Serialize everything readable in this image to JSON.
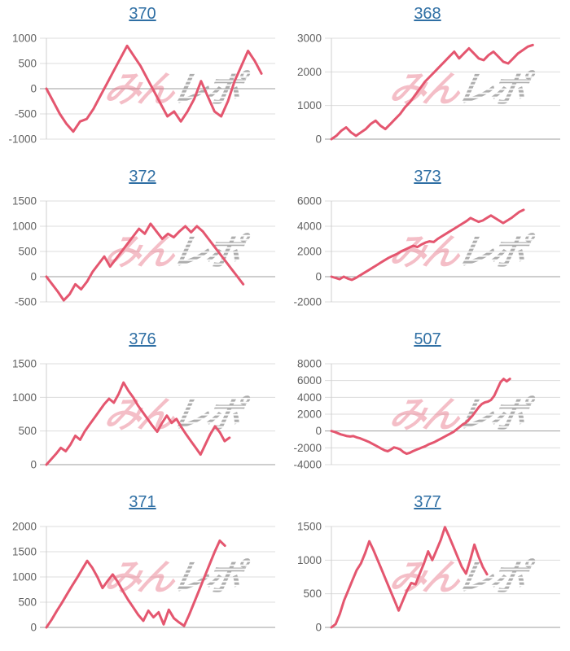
{
  "style": {
    "line_color": "#e4566f",
    "grid_color": "#dcdcdc",
    "zero_line_color": "#9e9e9e",
    "axis_line_color": "#cfcfcf",
    "tick_label_color": "#616161",
    "title_link_color": "#2f6fa4"
  },
  "watermark": {
    "pink_text": "みん",
    "gray_text": "レポ",
    "pink_color": "#e4566f",
    "gray_color": "#999999"
  },
  "chart_data": [
    {
      "type": "line",
      "title": "370",
      "ylim": [
        -1000,
        1000
      ],
      "yticks": [
        1000,
        500,
        0,
        -500,
        -1000
      ],
      "x_span": 0.94,
      "grid": true,
      "legend": "none",
      "values": [
        0,
        -250,
        -500,
        -700,
        -850,
        -650,
        -600,
        -400,
        -150,
        100,
        350,
        600,
        850,
        650,
        450,
        200,
        -50,
        -300,
        -550,
        -450,
        -650,
        -450,
        -200,
        150,
        -150,
        -450,
        -550,
        -250,
        150,
        450,
        750,
        550,
        300
      ]
    },
    {
      "type": "line",
      "title": "368",
      "ylim": [
        0,
        3000
      ],
      "yticks": [
        3000,
        2000,
        1000,
        0
      ],
      "x_span": 0.88,
      "grid": true,
      "legend": "none",
      "values": [
        0,
        100,
        250,
        350,
        200,
        100,
        200,
        300,
        450,
        550,
        400,
        300,
        450,
        600,
        750,
        950,
        1100,
        1300,
        1500,
        1700,
        1850,
        2000,
        2150,
        2300,
        2450,
        2600,
        2400,
        2550,
        2700,
        2550,
        2400,
        2350,
        2500,
        2600,
        2450,
        2300,
        2250,
        2400,
        2550,
        2650,
        2750,
        2800
      ]
    },
    {
      "type": "line",
      "title": "372",
      "ylim": [
        -500,
        1500
      ],
      "yticks": [
        1500,
        1000,
        500,
        0,
        -500
      ],
      "x_span": 0.86,
      "grid": true,
      "legend": "none",
      "values": [
        0,
        -150,
        -300,
        -470,
        -350,
        -150,
        -250,
        -100,
        100,
        250,
        400,
        200,
        350,
        500,
        650,
        800,
        950,
        850,
        1050,
        900,
        750,
        850,
        780,
        900,
        1000,
        880,
        1000,
        900,
        750,
        600,
        450,
        300,
        150,
        0,
        -150
      ]
    },
    {
      "type": "line",
      "title": "373",
      "ylim": [
        -2000,
        6000
      ],
      "yticks": [
        6000,
        4000,
        2000,
        0,
        -2000
      ],
      "x_span": 0.84,
      "grid": true,
      "legend": "none",
      "values": [
        0,
        -100,
        -200,
        0,
        -150,
        -250,
        -100,
        100,
        300,
        500,
        700,
        900,
        1100,
        1300,
        1500,
        1650,
        1800,
        2000,
        2150,
        2300,
        2450,
        2350,
        2550,
        2700,
        2800,
        2750,
        3000,
        3200,
        3400,
        3600,
        3800,
        4000,
        4200,
        4400,
        4650,
        4500,
        4350,
        4450,
        4650,
        4850,
        4650,
        4450,
        4250,
        4450,
        4650,
        4900,
        5150,
        5300
      ]
    },
    {
      "type": "line",
      "title": "376",
      "ylim": [
        0,
        1500
      ],
      "yticks": [
        1500,
        1000,
        500,
        0
      ],
      "x_span": 0.8,
      "grid": true,
      "legend": "none",
      "values": [
        0,
        80,
        160,
        250,
        200,
        300,
        430,
        370,
        500,
        600,
        700,
        800,
        900,
        980,
        920,
        1050,
        1220,
        1100,
        1000,
        880,
        780,
        680,
        580,
        490,
        620,
        730,
        620,
        680,
        560,
        450,
        350,
        250,
        150,
        300,
        450,
        570,
        480,
        350,
        400
      ]
    },
    {
      "type": "line",
      "title": "507",
      "ylim": [
        -4000,
        8000
      ],
      "yticks": [
        8000,
        6000,
        4000,
        2000,
        0,
        -2000,
        -4000
      ],
      "x_span": 0.78,
      "grid": true,
      "legend": "none",
      "values": [
        0,
        -100,
        -250,
        -400,
        -500,
        -600,
        -650,
        -600,
        -750,
        -850,
        -1000,
        -1150,
        -1300,
        -1500,
        -1700,
        -1900,
        -2100,
        -2300,
        -2400,
        -2200,
        -1950,
        -2050,
        -2200,
        -2500,
        -2700,
        -2600,
        -2400,
        -2250,
        -2100,
        -1950,
        -1800,
        -1600,
        -1450,
        -1300,
        -1100,
        -900,
        -700,
        -500,
        -300,
        -100,
        200,
        500,
        800,
        1000,
        1400,
        1800,
        2300,
        2800,
        3200,
        3400,
        3500,
        3700,
        4200,
        5000,
        5800,
        6200,
        5900,
        6200
      ]
    },
    {
      "type": "line",
      "title": "371",
      "ylim": [
        0,
        2000
      ],
      "yticks": [
        2000,
        1500,
        1000,
        500,
        0
      ],
      "x_span": 0.78,
      "grid": true,
      "legend": "none",
      "values": [
        0,
        150,
        320,
        480,
        650,
        820,
        980,
        1150,
        1320,
        1180,
        1000,
        780,
        920,
        1050,
        900,
        720,
        550,
        400,
        250,
        130,
        330,
        200,
        300,
        60,
        350,
        180,
        100,
        30,
        250,
        500,
        750,
        1000,
        1250,
        1500,
        1720,
        1620
      ]
    },
    {
      "type": "line",
      "title": "377",
      "ylim": [
        0,
        1500
      ],
      "yticks": [
        1500,
        1000,
        500,
        0
      ],
      "x_span": 0.68,
      "grid": true,
      "legend": "none",
      "values": [
        0,
        50,
        200,
        400,
        550,
        700,
        850,
        950,
        1100,
        1280,
        1150,
        1000,
        850,
        700,
        550,
        400,
        250,
        400,
        550,
        660,
        640,
        800,
        950,
        1130,
        1000,
        1150,
        1300,
        1490,
        1350,
        1200,
        1050,
        900,
        800,
        1000,
        1230,
        1050,
        900,
        790
      ]
    }
  ]
}
